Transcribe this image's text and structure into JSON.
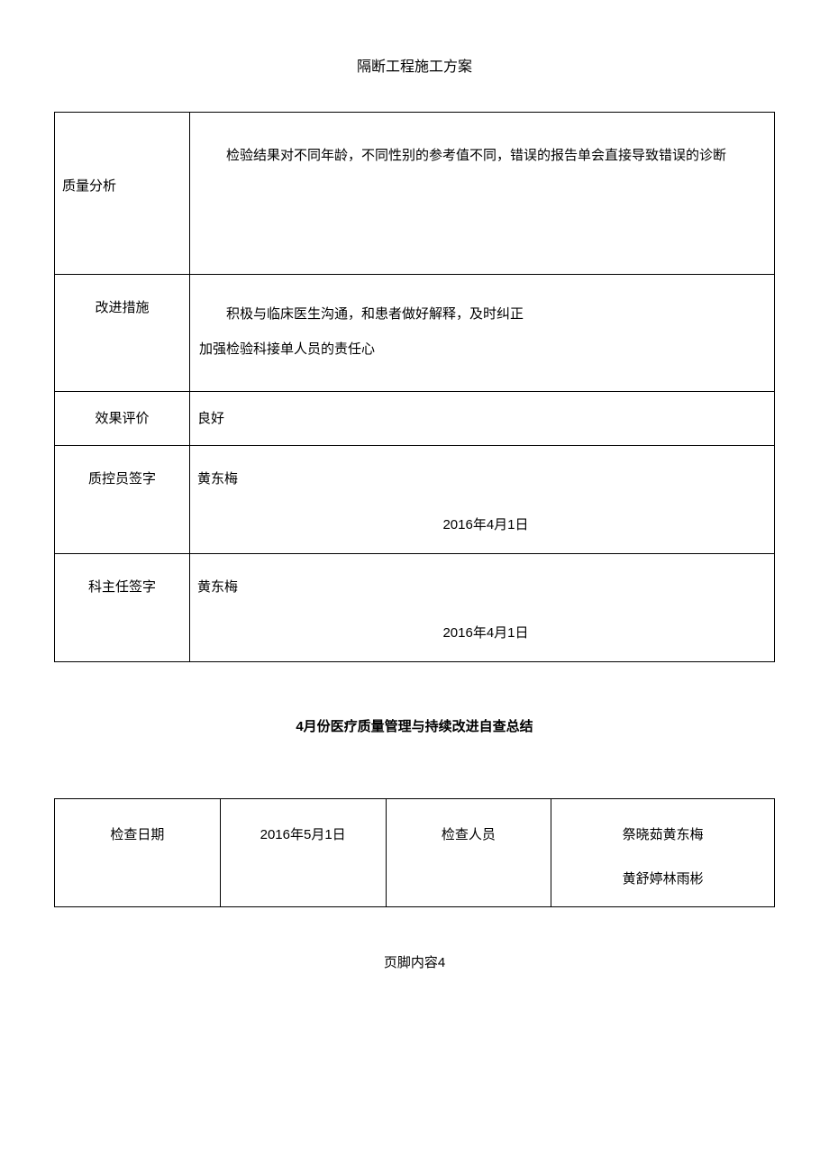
{
  "page_title": "隔断工程施工方案",
  "table1": {
    "rows": [
      {
        "label": "质量分析",
        "content": "检验结果对不同年龄，不同性别的参考值不同，错误的报告单会直接导致错误的诊断"
      },
      {
        "label": "改进措施",
        "content_line1": "积极与临床医生沟通，和患者做好解释，及时纠正",
        "content_line2": "加强检验科接单人员的责任心"
      },
      {
        "label": "效果评价",
        "content": "良好"
      },
      {
        "label": "质控员签字",
        "name": "黄东梅",
        "date": "2016年4月1日"
      },
      {
        "label": "科主任签字",
        "name": "黄东梅",
        "date": "2016年4月1日"
      }
    ]
  },
  "section_title": "4月份医疗质量管理与持续改进自查总结",
  "table2": {
    "col1_label": "检查日期",
    "col2_value": "2016年5月1日",
    "col3_label": "检查人员",
    "col4_names_line1": "祭晓茹黄东梅",
    "col4_names_line2": "黄舒婷林雨彬"
  },
  "footer": "页脚内容4",
  "colors": {
    "text": "#000000",
    "background": "#ffffff",
    "border": "#000000"
  }
}
